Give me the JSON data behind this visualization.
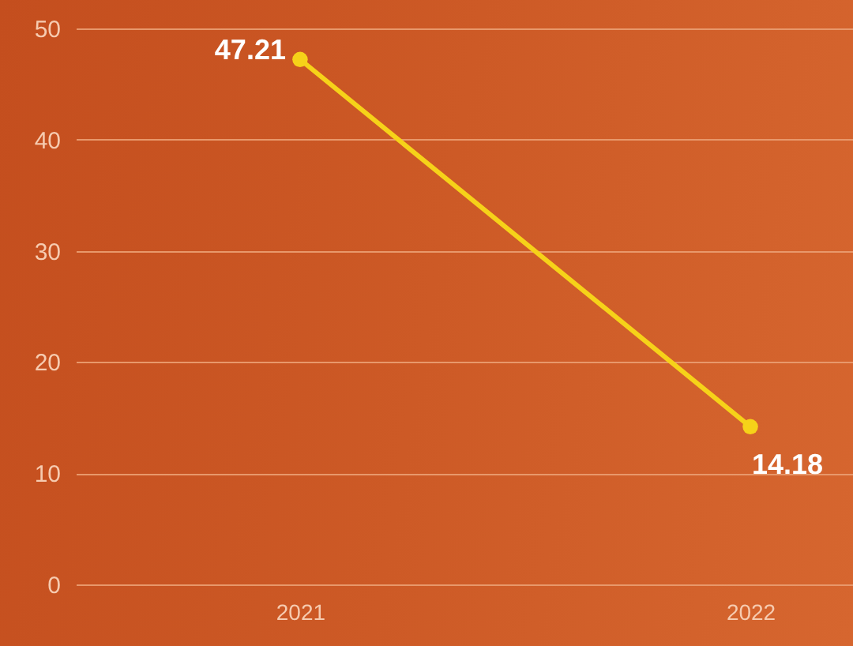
{
  "chart_data": {
    "type": "line",
    "categories": [
      "2021",
      "2022"
    ],
    "series": [
      {
        "color": "#f6d219",
        "values": [
          47.21,
          14.18
        ]
      }
    ],
    "ylim": [
      0,
      50
    ],
    "yticks": [
      0,
      10,
      20,
      30,
      40,
      50
    ],
    "grid": "y",
    "marker": "circle",
    "data_labels": true
  }
}
